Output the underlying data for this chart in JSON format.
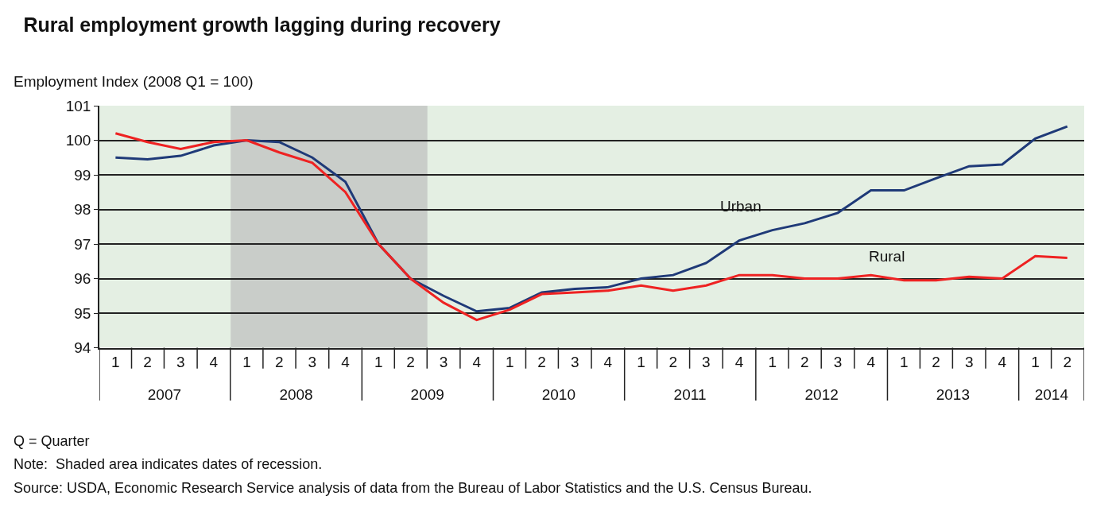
{
  "chart_data": {
    "type": "line",
    "title": "Rural employment growth lagging during recovery",
    "ylabel": "Employment Index (2008 Q1 = 100)",
    "x": [
      "2007-02-15",
      "2007-05-15",
      "2007-08-15",
      "2007-11-15",
      "2008-02-15",
      "2008-05-15",
      "2008-08-15",
      "2008-11-15",
      "2009-02-15",
      "2009-05-15",
      "2009-08-15",
      "2009-11-15",
      "2010-02-15",
      "2010-05-15",
      "2010-08-15",
      "2010-11-15",
      "2011-02-15",
      "2011-05-15",
      "2011-08-15",
      "2011-11-15",
      "2012-02-15",
      "2012-05-15",
      "2012-08-15",
      "2012-11-15",
      "2013-02-15",
      "2013-05-15",
      "2013-08-15",
      "2013-11-15",
      "2014-02-15",
      "2014-05-15"
    ],
    "series": [
      {
        "name": "Urban",
        "color": "#1f3a78",
        "values": [
          99.5,
          99.45,
          99.55,
          99.85,
          100,
          99.95,
          99.5,
          98.8,
          97.0,
          96.0,
          95.5,
          95.05,
          95.15,
          95.6,
          95.7,
          95.75,
          96.0,
          96.1,
          96.45,
          97.1,
          97.4,
          97.6,
          97.9,
          98.55,
          98.55,
          98.9,
          99.25,
          99.3,
          100.05,
          100.4
        ]
      },
      {
        "name": "Rural",
        "color": "#ee2222",
        "values": [
          100.2,
          99.95,
          99.75,
          99.95,
          100,
          99.65,
          99.35,
          98.5,
          97.0,
          96.0,
          95.3,
          94.8,
          95.1,
          95.55,
          95.6,
          95.65,
          95.8,
          95.65,
          95.8,
          96.1,
          96.1,
          96.0,
          96.0,
          96.1,
          95.95,
          95.95,
          96.05,
          96.0,
          96.65,
          96.6
        ]
      }
    ],
    "xlim": [
      "2007-01-01",
      "2014-07-01"
    ],
    "xticks": [
      {
        "value": "2007-02-15",
        "label": "1"
      },
      {
        "value": "2007-05-15",
        "label": "2"
      },
      {
        "value": "2007-08-15",
        "label": "3"
      },
      {
        "value": "2007-11-15",
        "label": "4"
      },
      {
        "value": "2008-02-15",
        "label": "1"
      },
      {
        "value": "2008-05-15",
        "label": "2"
      },
      {
        "value": "2008-08-15",
        "label": "3"
      },
      {
        "value": "2008-11-15",
        "label": "4"
      },
      {
        "value": "2009-02-15",
        "label": "1"
      },
      {
        "value": "2009-05-15",
        "label": "2"
      },
      {
        "value": "2009-08-15",
        "label": "3"
      },
      {
        "value": "2009-11-15",
        "label": "4"
      },
      {
        "value": "2010-02-15",
        "label": "1"
      },
      {
        "value": "2010-05-15",
        "label": "2"
      },
      {
        "value": "2010-08-15",
        "label": "3"
      },
      {
        "value": "2010-11-15",
        "label": "4"
      },
      {
        "value": "2011-02-15",
        "label": "1"
      },
      {
        "value": "2011-05-15",
        "label": "2"
      },
      {
        "value": "2011-08-15",
        "label": "3"
      },
      {
        "value": "2011-11-15",
        "label": "4"
      },
      {
        "value": "2012-02-15",
        "label": "1"
      },
      {
        "value": "2012-05-15",
        "label": "2"
      },
      {
        "value": "2012-08-15",
        "label": "3"
      },
      {
        "value": "2012-11-15",
        "label": "4"
      },
      {
        "value": "2013-02-15",
        "label": "1"
      },
      {
        "value": "2013-05-15",
        "label": "2"
      },
      {
        "value": "2013-08-15",
        "label": "3"
      },
      {
        "value": "2013-11-15",
        "label": "4"
      },
      {
        "value": "2014-02-15",
        "label": "1"
      },
      {
        "value": "2014-05-15",
        "label": "2"
      }
    ],
    "x2lim": [
      "2007-01-01",
      "2014-07-01"
    ],
    "x2ticks": [
      {
        "value": "2007-07-01",
        "label": "2007"
      },
      {
        "value": "2008-07-01",
        "label": "2008"
      },
      {
        "value": "2009-07-01",
        "label": "2009"
      },
      {
        "value": "2010-07-01",
        "label": "2010"
      },
      {
        "value": "2011-07-01",
        "label": "2011"
      },
      {
        "value": "2012-07-01",
        "label": "2012"
      },
      {
        "value": "2013-07-01",
        "label": "2013"
      },
      {
        "value": "2014-04-01",
        "label": "2014"
      }
    ],
    "ylim": [
      94,
      101
    ],
    "yticks": [
      94,
      95,
      96,
      97,
      98,
      99,
      100,
      101
    ],
    "grid": "y",
    "legend": false,
    "bands": [
      {
        "axis": "x",
        "from": "2008-01-01",
        "to": "2009-07-01",
        "color": "#c9cdc9"
      }
    ],
    "annotations": [
      "Q = Quarter",
      "Note:  Shaded area indicates dates of recession.",
      "Source: USDA, Economic Research Service analysis of data from the Bureau of Labor Statistics and the U.S. Census Bureau."
    ]
  }
}
